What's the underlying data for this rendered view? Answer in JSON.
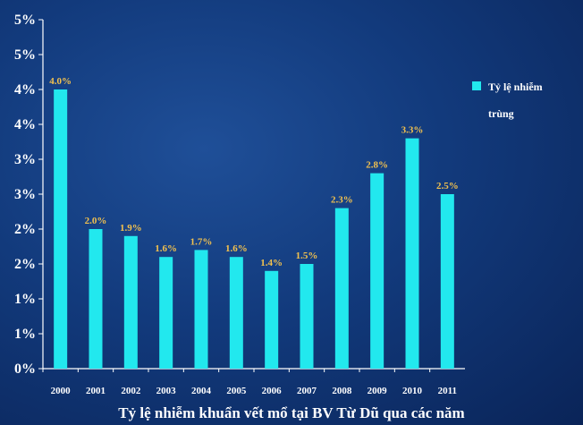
{
  "chart_data": {
    "type": "bar",
    "title": "Tỷ lệ nhiễm khuẩn vết mổ tại BV Từ Dũ qua các năm",
    "categories": [
      "2000",
      "2001",
      "2002",
      "2003",
      "2004",
      "2005",
      "2006",
      "2007",
      "2008",
      "2009",
      "2010",
      "2011"
    ],
    "series": [
      {
        "name": "Tỷ lệ nhiễm trùng",
        "values": [
          4.0,
          2.0,
          1.9,
          1.6,
          1.7,
          1.6,
          1.4,
          1.5,
          2.3,
          2.8,
          3.3,
          2.5
        ],
        "value_labels": [
          "4.0%",
          "2.0%",
          "1.9%",
          "1.6%",
          "1.7%",
          "1.6%",
          "1.4%",
          "1.5%",
          "2.3%",
          "2.8%",
          "3.3%",
          "2.5%"
        ]
      }
    ],
    "ylim": [
      0,
      5
    ],
    "yticks": [
      0,
      0.5,
      1,
      1.5,
      2,
      2.5,
      3,
      3.5,
      4,
      4.5,
      5
    ],
    "ytick_labels": [
      "0%",
      "1%",
      "1%",
      "2%",
      "2%",
      "3%",
      "3%",
      "4%",
      "4%",
      "5%",
      "5%"
    ],
    "xlabel": "",
    "ylabel": "",
    "grid": false,
    "legend_position": "right",
    "colors": {
      "bar": "#22e8ee",
      "value_label": "#f2c14e",
      "text": "#ffffff",
      "background": "#123a7c"
    }
  }
}
